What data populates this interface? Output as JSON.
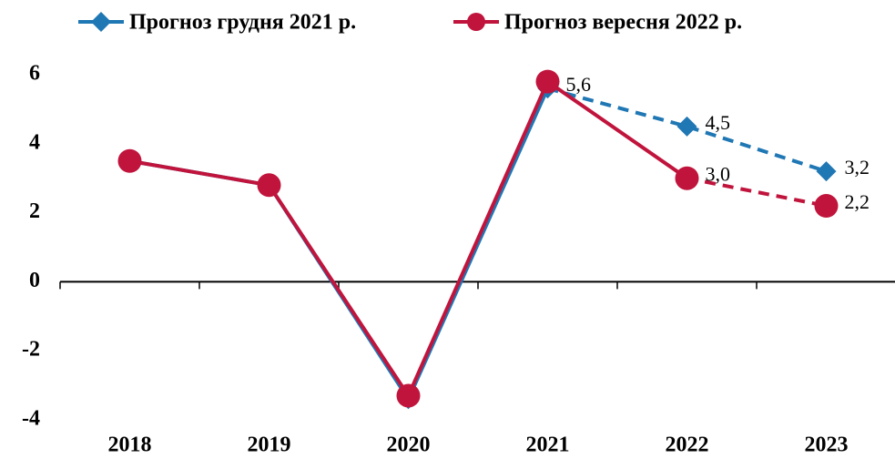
{
  "chart_data": {
    "type": "line",
    "categories": [
      "2018",
      "2019",
      "2020",
      "2021",
      "2022",
      "2023"
    ],
    "series": [
      {
        "name": "Прогноз грудня 2021 р.",
        "color": "#1f77b4",
        "marker": "diamond",
        "dash_from": 3,
        "values": [
          3.5,
          2.8,
          -3.4,
          5.6,
          4.5,
          3.2
        ],
        "value_labels": [
          null,
          null,
          null,
          "5,6",
          "4,5",
          "3,2"
        ]
      },
      {
        "name": "Прогноз вересня 2022 р.",
        "color": "#c0143c",
        "marker": "circle",
        "dash_from": 4,
        "values": [
          3.5,
          2.8,
          -3.3,
          5.8,
          3.0,
          2.2
        ],
        "value_labels": [
          null,
          null,
          null,
          null,
          "3,0",
          "2,2"
        ]
      }
    ],
    "ylim": [
      -4,
      6
    ],
    "yticks": [
      -4,
      -2,
      0,
      2,
      4,
      6
    ],
    "grid": false
  }
}
